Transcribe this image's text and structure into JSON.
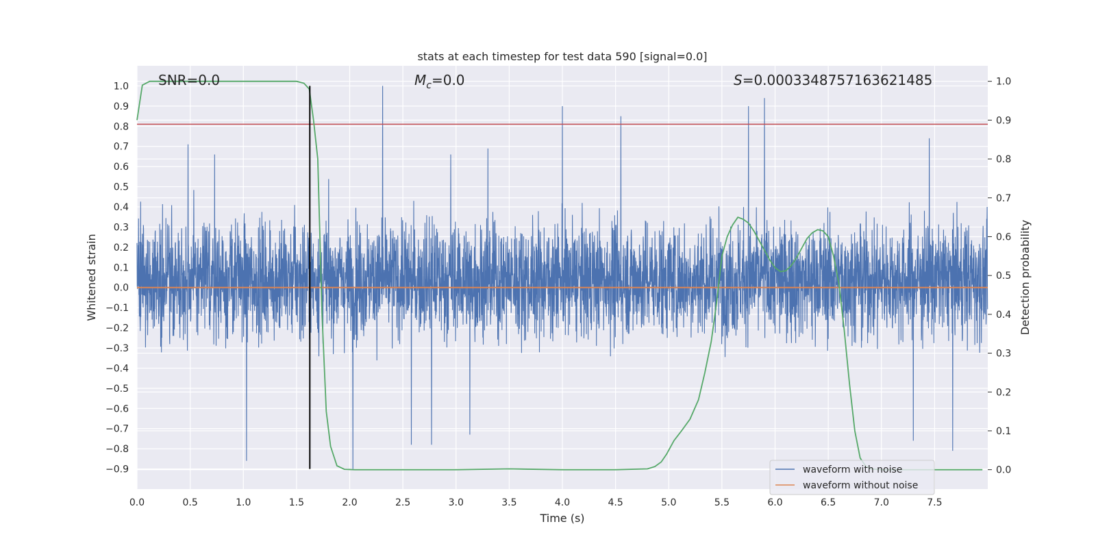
{
  "chart_data": {
    "type": "line",
    "title": "stats at each timestep for test data 590 [signal=0.0]",
    "xlabel": "Time (s)",
    "ylabel_left": "Whitened strain",
    "ylabel_right": "Detection probability",
    "xlim": [
      0.0,
      8.0
    ],
    "ylim_left": [
      -1.0,
      1.1
    ],
    "ylim_right": [
      -0.05,
      1.04
    ],
    "x_ticks": [
      "0.0",
      "0.5",
      "1.0",
      "1.5",
      "2.0",
      "2.5",
      "3.0",
      "3.5",
      "4.0",
      "4.5",
      "5.0",
      "5.5",
      "6.0",
      "6.5",
      "7.0",
      "7.5"
    ],
    "y_ticks_left": [
      "1.0",
      "0.9",
      "0.8",
      "0.7",
      "0.6",
      "0.5",
      "0.4",
      "0.3",
      "0.2",
      "0.1",
      "0.0",
      "−0.1",
      "−0.2",
      "−0.3",
      "−0.4",
      "−0.5",
      "−0.6",
      "−0.7",
      "−0.8",
      "−0.9"
    ],
    "y_ticks_right": [
      "1.0",
      "0.9",
      "0.8",
      "0.7",
      "0.6",
      "0.5",
      "0.4",
      "0.3",
      "0.2",
      "0.1",
      "0.0"
    ],
    "grid": true,
    "legend_position": "bottom-right",
    "annotations": {
      "snr": "SNR=0.0",
      "mc": "=0.0",
      "mc_symbol": "M",
      "mc_sub": "c",
      "s": "=0.0003348757163621485",
      "s_symbol": "S"
    },
    "series": [
      {
        "name": "waveform with noise",
        "axis": "left",
        "color": "#4c72b0",
        "kind": "noise",
        "spikes_max": [
          [
            0.48,
            0.71
          ],
          [
            0.73,
            0.66
          ],
          [
            2.31,
            1.0
          ],
          [
            2.95,
            0.66
          ],
          [
            3.3,
            0.69
          ],
          [
            4.0,
            0.9
          ],
          [
            4.55,
            0.85
          ],
          [
            5.75,
            0.9
          ],
          [
            5.9,
            0.94
          ],
          [
            7.45,
            0.74
          ]
        ],
        "spikes_min": [
          [
            1.03,
            -0.86
          ],
          [
            2.03,
            -0.9
          ],
          [
            2.58,
            -0.78
          ],
          [
            2.77,
            -0.78
          ],
          [
            3.13,
            -0.73
          ],
          [
            7.3,
            -0.76
          ],
          [
            7.67,
            -0.81
          ]
        ]
      },
      {
        "name": "waveform without noise",
        "axis": "left",
        "color": "#dd8452",
        "x": [
          0.0,
          8.0
        ],
        "y": [
          0.0,
          0.0
        ]
      },
      {
        "name": "",
        "axis": "right",
        "color": "#55a868",
        "x": [
          0.0,
          0.05,
          0.12,
          0.3,
          0.6,
          1.0,
          1.3,
          1.5,
          1.57,
          1.62,
          1.66,
          1.7,
          1.74,
          1.78,
          1.82,
          1.88,
          1.95,
          2.05,
          2.5,
          3.0,
          3.5,
          4.0,
          4.5,
          4.8,
          4.87,
          4.93,
          4.98,
          5.05,
          5.12,
          5.2,
          5.28,
          5.34,
          5.4,
          5.45,
          5.5,
          5.55,
          5.6,
          5.65,
          5.7,
          5.75,
          5.8,
          5.85,
          5.9,
          5.95,
          6.0,
          6.05,
          6.1,
          6.15,
          6.2,
          6.25,
          6.3,
          6.35,
          6.4,
          6.45,
          6.5,
          6.55,
          6.6,
          6.65,
          6.7,
          6.75,
          6.8,
          6.85,
          6.9,
          7.0,
          7.5,
          7.95
        ],
        "y": [
          0.9,
          0.99,
          1.0,
          1.0,
          1.0,
          1.0,
          1.0,
          1.0,
          0.995,
          0.98,
          0.9,
          0.8,
          0.4,
          0.15,
          0.06,
          0.01,
          0.001,
          0.0,
          0.0,
          0.0,
          0.002,
          0.0,
          0.0,
          0.002,
          0.008,
          0.02,
          0.04,
          0.075,
          0.1,
          0.13,
          0.18,
          0.25,
          0.33,
          0.43,
          0.55,
          0.6,
          0.63,
          0.65,
          0.645,
          0.635,
          0.615,
          0.59,
          0.565,
          0.54,
          0.52,
          0.51,
          0.512,
          0.525,
          0.545,
          0.57,
          0.595,
          0.61,
          0.618,
          0.615,
          0.6,
          0.55,
          0.48,
          0.36,
          0.22,
          0.1,
          0.03,
          0.01,
          0.002,
          0.0,
          0.0,
          0.0
        ]
      }
    ],
    "hlines": [
      {
        "axis": "left",
        "y": 0.81,
        "color": "#c44e52"
      }
    ],
    "vlines": [
      {
        "x": 1.625,
        "y_from": -0.9,
        "y_to": 1.0,
        "color": "#000000"
      }
    ]
  }
}
